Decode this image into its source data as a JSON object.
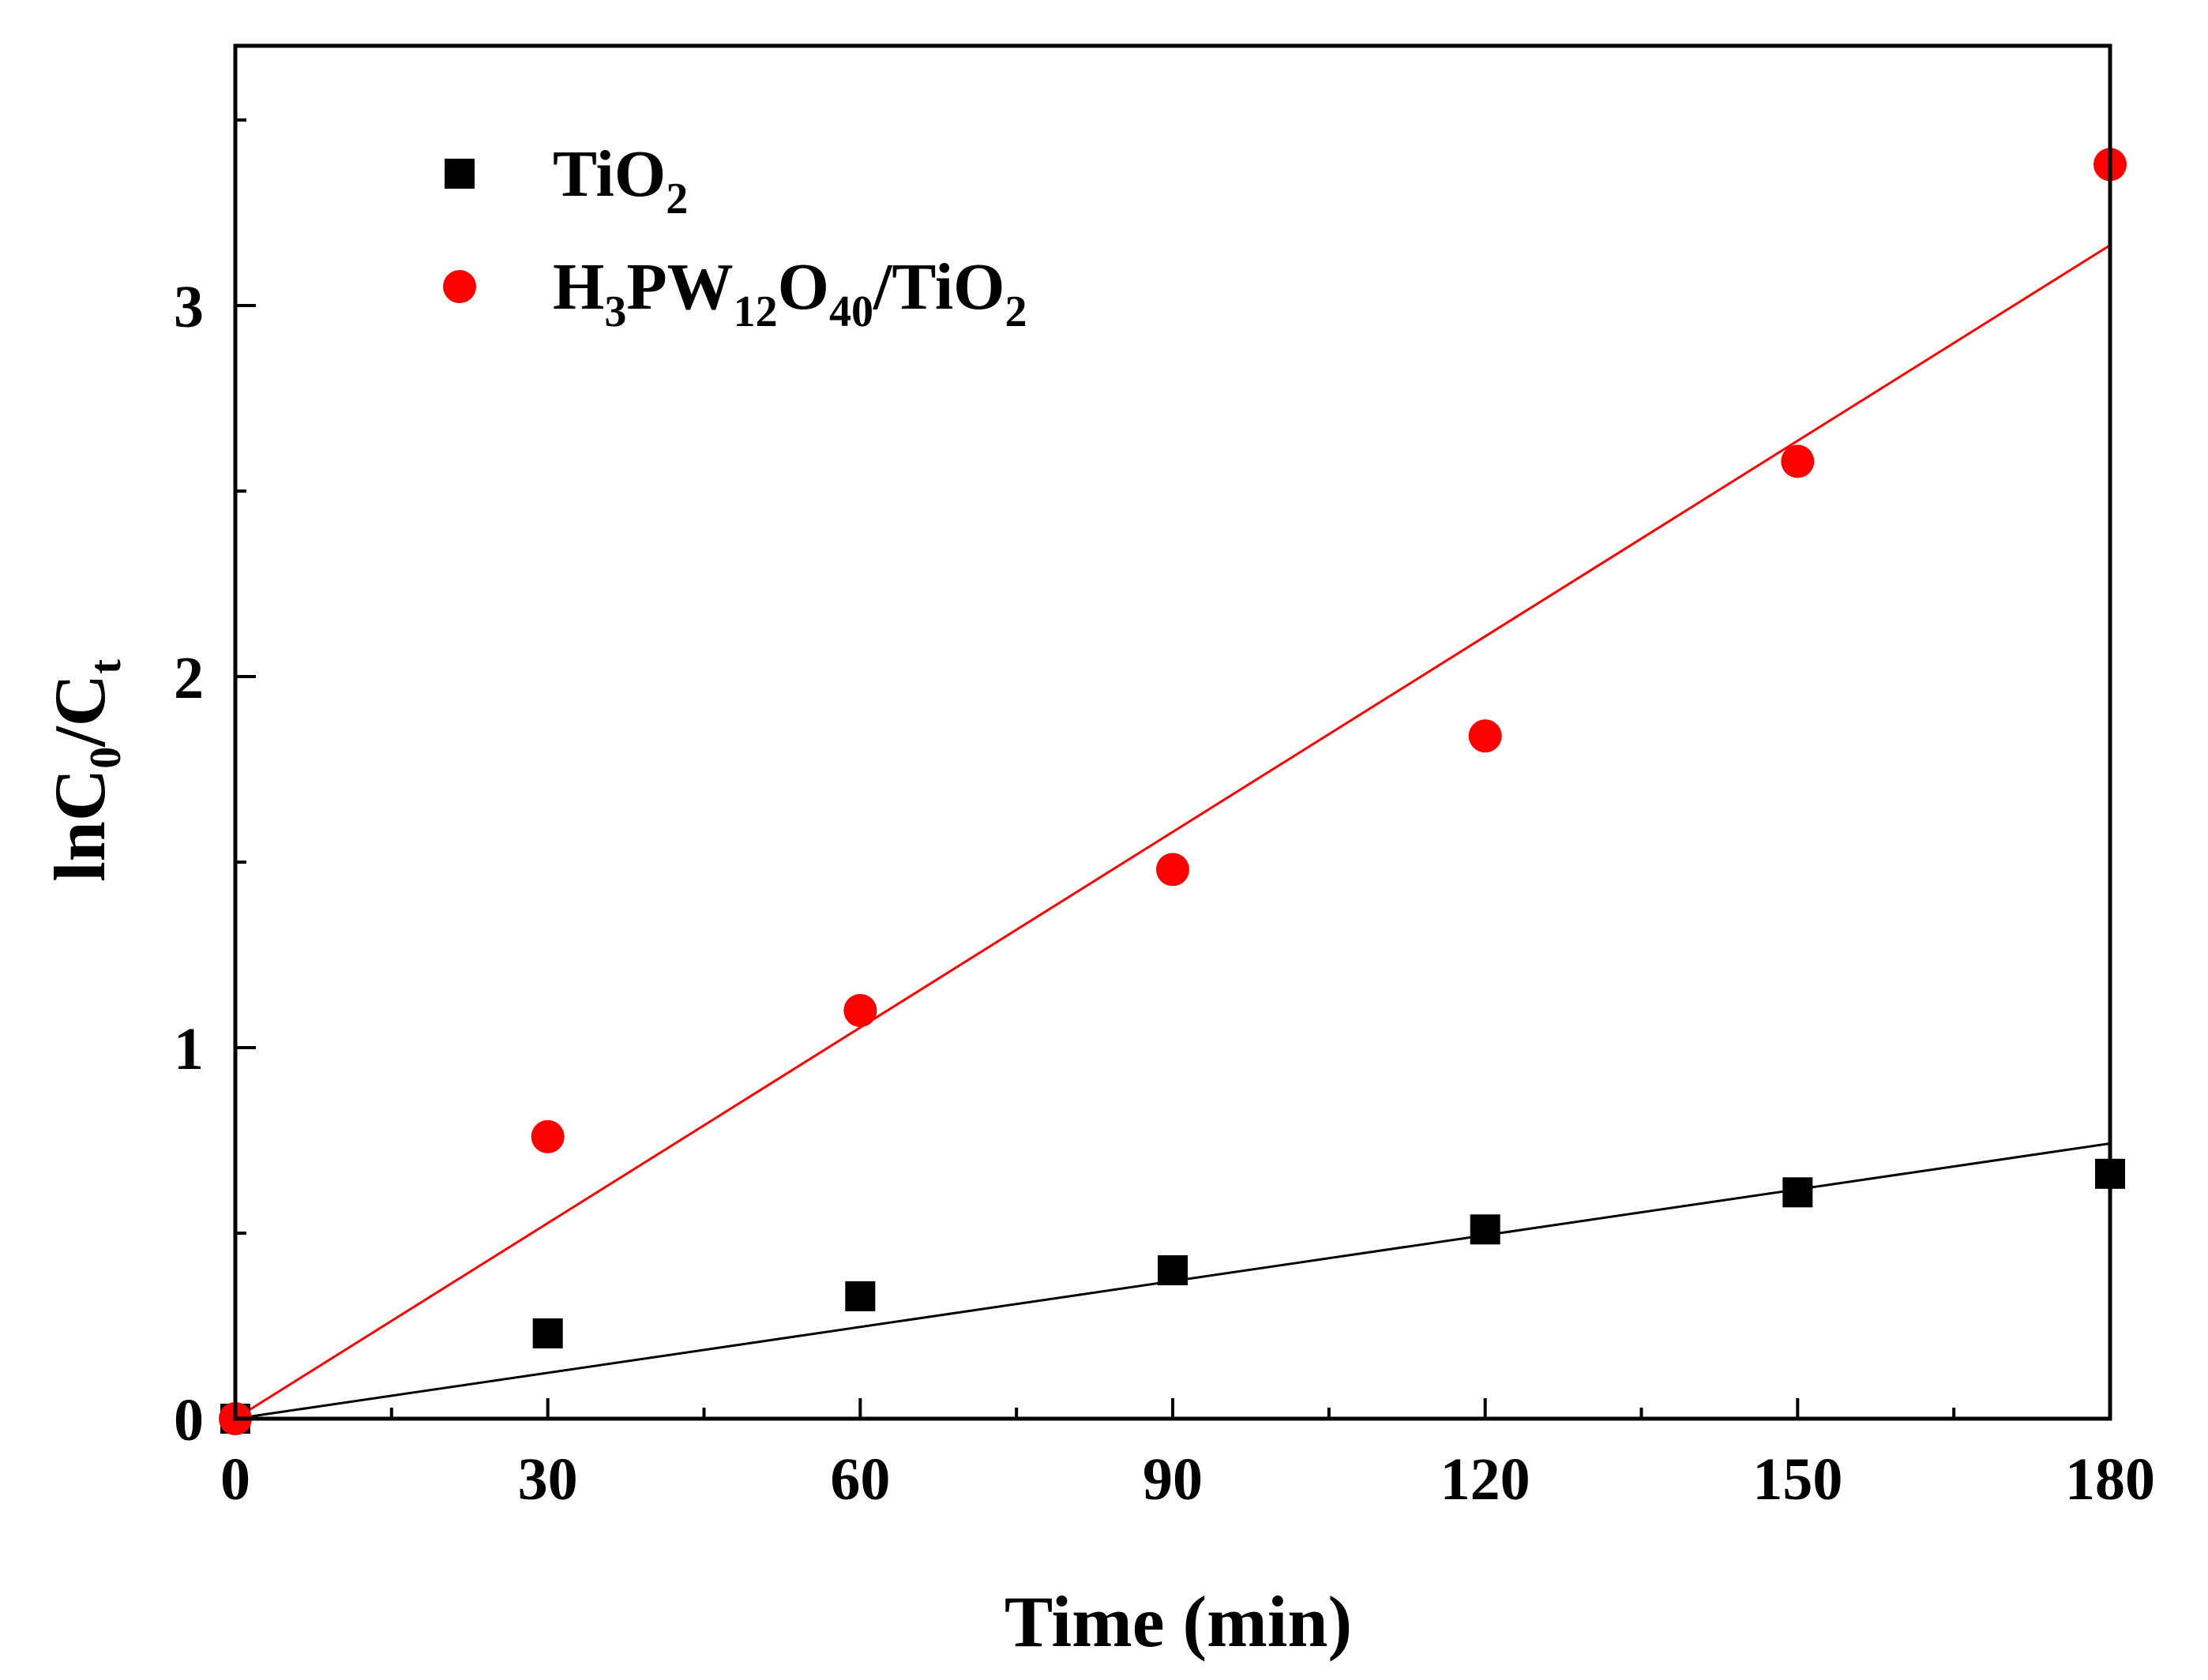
{
  "chart_data": {
    "type": "scatter",
    "title": "",
    "xlabel": "Time (min)",
    "ylabel": {
      "main": "lnC",
      "sub1": "0",
      "mid": "/C",
      "sub2": "t"
    },
    "xlim": [
      0,
      180
    ],
    "ylim": [
      0,
      3.7
    ],
    "xticks": [
      0,
      30,
      60,
      90,
      120,
      150,
      180
    ],
    "xtick_labels": [
      "0",
      "30",
      "60",
      "90",
      "120",
      "150",
      "180"
    ],
    "xminor": [
      15,
      45,
      75,
      105,
      135,
      165
    ],
    "yticks": [
      0,
      1,
      2,
      3
    ],
    "ytick_labels": [
      "0",
      "1",
      "2",
      "3"
    ],
    "yminor": [
      0.5,
      1.5,
      2.5,
      3.5
    ],
    "grid": false,
    "legend_position": "top-left",
    "series": [
      {
        "name": "TiO2",
        "legend_parts": [
          {
            "text": "TiO",
            "sub": false
          },
          {
            "text": "2",
            "sub": true
          }
        ],
        "marker": "square",
        "color": "#000000",
        "x": [
          0,
          30,
          60,
          90,
          120,
          150,
          180
        ],
        "y": [
          0.0,
          0.23,
          0.33,
          0.4,
          0.51,
          0.61,
          0.66
        ],
        "fit": {
          "slope": 0.00412,
          "intercept": 0.0
        }
      },
      {
        "name": "H3PW12O40/TiO2",
        "legend_parts": [
          {
            "text": "H",
            "sub": false
          },
          {
            "text": "3",
            "sub": true
          },
          {
            "text": "PW",
            "sub": false
          },
          {
            "text": "12",
            "sub": true
          },
          {
            "text": "O",
            "sub": false
          },
          {
            "text": "40",
            "sub": true
          },
          {
            "text": "/TiO",
            "sub": false
          },
          {
            "text": "2",
            "sub": true
          }
        ],
        "marker": "circle",
        "color": "#ff0000",
        "x": [
          0,
          30,
          60,
          90,
          120,
          150,
          180
        ],
        "y": [
          0.0,
          0.76,
          1.1,
          1.48,
          1.84,
          2.58,
          3.38
        ],
        "fit": {
          "slope": 0.01757,
          "intercept": 0.0
        }
      }
    ]
  }
}
